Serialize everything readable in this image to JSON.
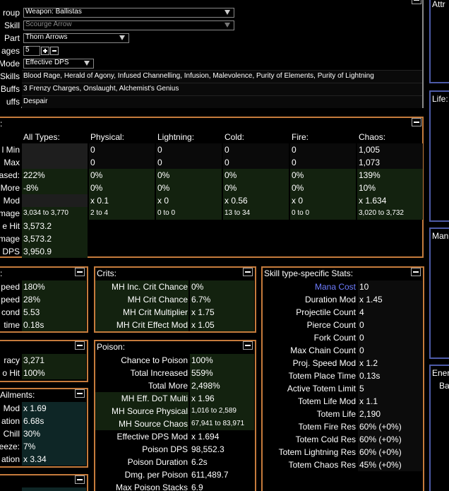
{
  "config": {
    "rows": [
      {
        "label": "roup",
        "value": "Weapon: Ballistas"
      },
      {
        "label": "Skill",
        "value": "Scourge Arrow"
      },
      {
        "label": "Part",
        "value": "Thorn Arrows"
      },
      {
        "label": "ages",
        "value": "5"
      },
      {
        "label": "Mode",
        "value": "Effective DPS"
      },
      {
        "label": "Skills",
        "value": "Blood Rage, Herald of Agony, Infused Channelling, Infusion, Malevolence, Purity of Elements, Purity of Lightning"
      },
      {
        "label": "Buffs",
        "value": "3 Frenzy Charges, Onslaught, Alchemist's Genius"
      },
      {
        "label": "uffs",
        "value": "Despair"
      }
    ]
  },
  "damage": {
    "title": ":",
    "columns": [
      "All Types:",
      "Physical:",
      "Lightning:",
      "Cold:",
      "Fire:",
      "Chaos:"
    ],
    "rows": [
      {
        "label": "l Min",
        "values": [
          null,
          "0",
          "0",
          "0",
          "0",
          "1,005"
        ]
      },
      {
        "label": "Max",
        "values": [
          null,
          "0",
          "0",
          "0",
          "0",
          "1,073"
        ]
      },
      {
        "label": "ased:",
        "values": [
          "222%",
          "0%",
          "0%",
          "0%",
          "0%",
          "139%"
        ]
      },
      {
        "label": "More",
        "values": [
          "-8%",
          "0%",
          "0%",
          "0%",
          "0%",
          "10%"
        ]
      },
      {
        "label": "Mod",
        "values": [
          null,
          "x 0.1",
          "x 0",
          "x 0.56",
          "x 0",
          "x 1.634"
        ]
      },
      {
        "label": "mage",
        "values": [
          "3,034 to 3,770",
          "2 to 4",
          "0 to 0",
          "13 to 34",
          "0 to 0",
          "3,020 to 3,732"
        ]
      },
      {
        "label": "e Hit",
        "values": [
          "3,573.2"
        ]
      },
      {
        "label": "mage",
        "values": [
          "3,573.2"
        ]
      },
      {
        "label": "DPS",
        "values": [
          "3,950.9"
        ]
      }
    ]
  },
  "speed": {
    "title": ":",
    "rows": [
      {
        "label": "peed",
        "value": "180%"
      },
      {
        "label": "peed",
        "value": "28%"
      },
      {
        "label": "cond",
        "value": "5.53"
      },
      {
        "label": "time",
        "value": "0.18s"
      }
    ]
  },
  "accuracy": {
    "rows": [
      {
        "label": "racy",
        "value": "3,271"
      },
      {
        "label": "o Hit",
        "value": "100%"
      }
    ]
  },
  "ailments": {
    "title": "Ailments:",
    "rows": [
      {
        "label": "Mod",
        "value": "x 1.69"
      },
      {
        "label": "ation",
        "value": "6.68s"
      },
      {
        "label": "Chill",
        "value": "30%"
      },
      {
        "label": "eeze:",
        "value": "7%"
      },
      {
        "label": "ation",
        "value": "x 3.34"
      }
    ]
  },
  "crits": {
    "title": "Crits:",
    "rows": [
      {
        "label": "MH Inc. Crit Chance",
        "value": "0%"
      },
      {
        "label": "MH Crit Chance",
        "value": "6.7%"
      },
      {
        "label": "MH Crit Multiplier",
        "value": "x 1.75"
      },
      {
        "label": "MH Crit Effect Mod",
        "value": "x 1.05"
      }
    ]
  },
  "poison": {
    "title": "Poison:",
    "rows": [
      {
        "label": "Chance to Poison",
        "value": "100%"
      },
      {
        "label": "Total Increased",
        "value": "559%"
      },
      {
        "label": "Total More",
        "value": "2,498%"
      },
      {
        "label": "MH Eff. DoT Multi",
        "value": "x 1.96"
      },
      {
        "label": "MH Source Physical",
        "value": "1,016 to 2,589"
      },
      {
        "label": "MH Source Chaos",
        "value": "67,941 to 83,971"
      },
      {
        "label": "Effective DPS Mod",
        "value": "x 1.694"
      },
      {
        "label": "Poison DPS",
        "value": "98,552.3"
      },
      {
        "label": "Poison Duration",
        "value": "6.2s"
      },
      {
        "label": "Dmg. per Poison",
        "value": "611,489.7"
      },
      {
        "label": "Max Poison Stacks",
        "value": "6.9"
      }
    ]
  },
  "skill_type": {
    "title": "Skill type-specific Stats:",
    "rows": [
      {
        "label": "Mana Cost",
        "value": "10"
      },
      {
        "label": "Duration Mod",
        "value": "x 1.45"
      },
      {
        "label": "Projectile Count",
        "value": "4"
      },
      {
        "label": "Pierce Count",
        "value": "0"
      },
      {
        "label": "Fork Count",
        "value": "0"
      },
      {
        "label": "Max Chain Count",
        "value": "0"
      },
      {
        "label": "Proj. Speed Mod",
        "value": "x 1.2"
      },
      {
        "label": "Totem Place Time",
        "value": "0.13s"
      },
      {
        "label": "Active Totem Limit",
        "value": "5"
      },
      {
        "label": "Totem Life Mod",
        "value": "x 1.1"
      },
      {
        "label": "Totem Life",
        "value": "2,190"
      },
      {
        "label": "Totem Fire Res",
        "value": "60% (+0%)"
      },
      {
        "label": "Totem Cold Res",
        "value": "60% (+0%)"
      },
      {
        "label": "Totem Lightning Res",
        "value": "60% (+0%)"
      },
      {
        "label": "Totem Chaos Res",
        "value": "45% (+0%)"
      }
    ]
  },
  "side": [
    {
      "title": "Attr"
    },
    {
      "title": "Life:"
    },
    {
      "title": "Man"
    },
    {
      "title": "Ener",
      "text": "Ba"
    }
  ]
}
